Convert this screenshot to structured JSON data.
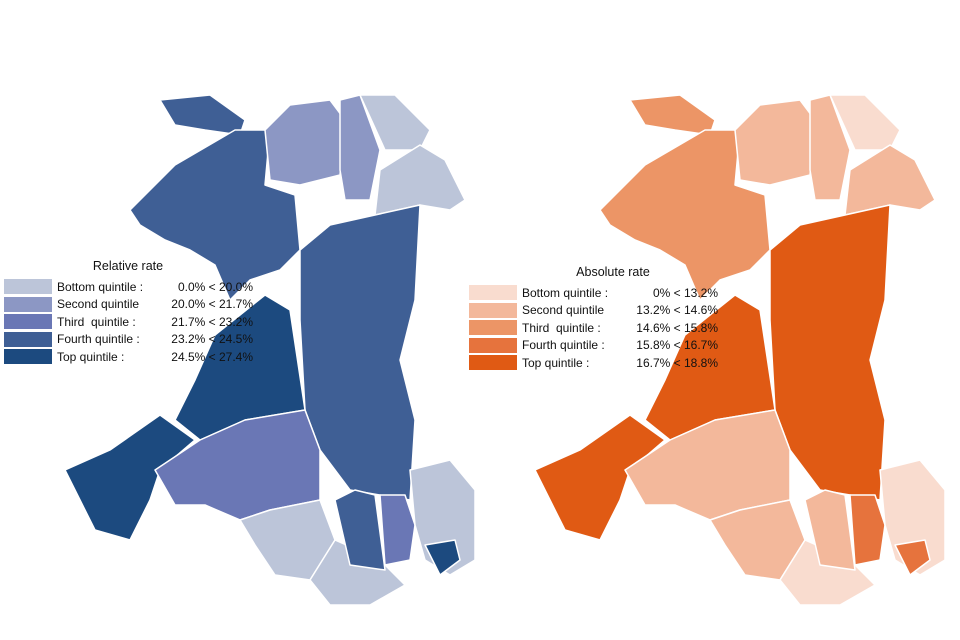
{
  "maps": [
    {
      "legend_title": "Relative rate",
      "colors": [
        "#bcc5d9",
        "#8c97c4",
        "#6a77b5",
        "#3f5f95",
        "#1c4a7f"
      ],
      "quintiles": [
        {
          "label": "Bottom quintile :",
          "range": "0.0% < 20.0%"
        },
        {
          "label": "Second quintile",
          "range": "20.0% < 21.7%"
        },
        {
          "label": "Third  quintile :",
          "range": "21.7% < 23.2%"
        },
        {
          "label": "Fourth quintile :",
          "range": "23.2% < 24.5%"
        },
        {
          "label": "Top quintile :",
          "range": "24.5% < 27.4%"
        }
      ]
    },
    {
      "legend_title": "Absolute rate",
      "colors": [
        "#f9dccf",
        "#f3b89b",
        "#ec9566",
        "#e6733d",
        "#e05a14"
      ],
      "quintiles": [
        {
          "label": "Bottom quintile :",
          "range": "0% < 13.2%"
        },
        {
          "label": "Second quintile",
          "range": "13.2% < 14.6%"
        },
        {
          "label": "Third  quintile :",
          "range": "14.6% < 15.8%"
        },
        {
          "label": "Fourth quintile :",
          "range": "15.8% < 16.7%"
        },
        {
          "label": "Top quintile :",
          "range": "16.7% < 18.8%"
        }
      ]
    }
  ]
}
